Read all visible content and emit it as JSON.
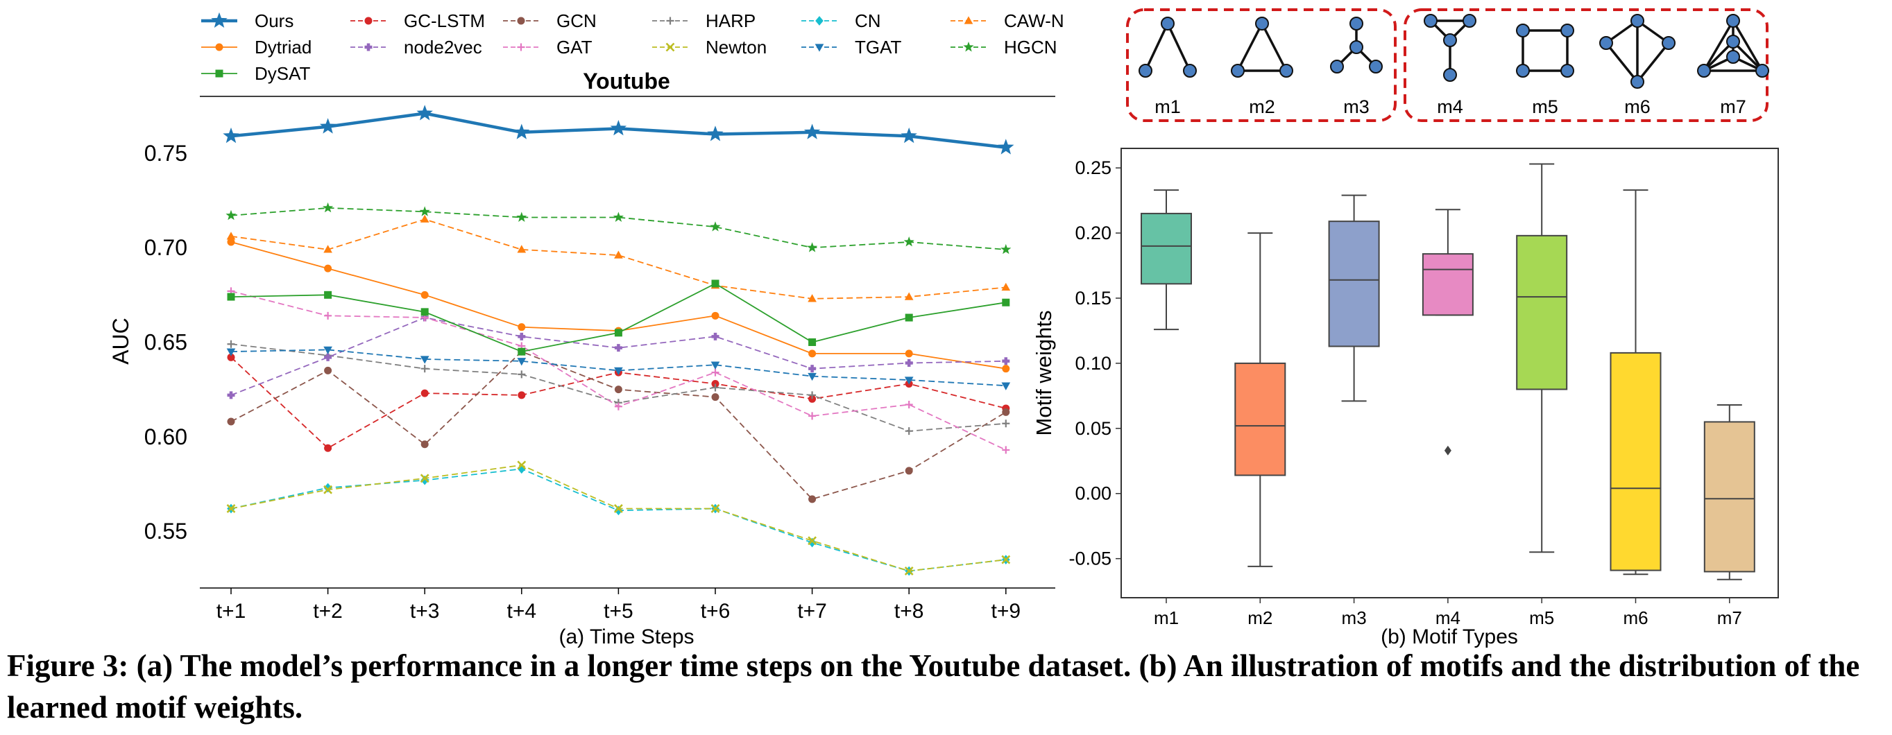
{
  "caption": "Figure 3: (a) The model’s performance in a longer time steps on the Youtube dataset. (b) An illustration of motifs and the distribution of the learned motif weights.",
  "chart_data": [
    {
      "type": "line",
      "title": "Youtube",
      "xlabel": "(a) Time Steps",
      "ylabel": "AUC",
      "categories": [
        "t+1",
        "t+2",
        "t+3",
        "t+4",
        "t+5",
        "t+6",
        "t+7",
        "t+8",
        "t+9"
      ],
      "ylim": [
        0.52,
        0.78
      ],
      "yticks": [
        0.55,
        0.6,
        0.65,
        0.7,
        0.75
      ],
      "ytick_labels": [
        "0.55",
        "0.60",
        "0.65",
        "0.70",
        "0.75"
      ],
      "grid": false,
      "legend_position": "top",
      "series": [
        {
          "name": "Ours",
          "color": "#1f77b4",
          "marker": "star",
          "linestyle": "solid",
          "values": [
            0.759,
            0.764,
            0.771,
            0.761,
            0.763,
            0.76,
            0.761,
            0.759,
            0.753
          ]
        },
        {
          "name": "GC-LSTM",
          "color": "#d62728",
          "marker": "circle",
          "linestyle": "dashed",
          "values": [
            0.642,
            0.594,
            0.623,
            0.622,
            0.634,
            0.628,
            0.62,
            0.628,
            0.615
          ]
        },
        {
          "name": "GCN",
          "color": "#8c564b",
          "marker": "circle",
          "linestyle": "dashed",
          "values": [
            0.608,
            0.635,
            0.596,
            0.645,
            0.625,
            0.621,
            0.567,
            0.582,
            0.613
          ]
        },
        {
          "name": "HARP",
          "color": "#7f7f7f",
          "marker": "plus",
          "linestyle": "dashed",
          "values": [
            0.649,
            0.643,
            0.636,
            0.633,
            0.618,
            0.626,
            0.622,
            0.603,
            0.607
          ]
        },
        {
          "name": "CN",
          "color": "#17becf",
          "marker": "diamond",
          "linestyle": "dashed",
          "values": [
            0.562,
            0.573,
            0.577,
            0.583,
            0.561,
            0.562,
            0.544,
            0.529,
            0.535
          ]
        },
        {
          "name": "CAW-N",
          "color": "#ff7f0e",
          "marker": "triangle-up",
          "linestyle": "dashed",
          "values": [
            0.706,
            0.699,
            0.715,
            0.699,
            0.696,
            0.68,
            0.673,
            0.674,
            0.679
          ]
        },
        {
          "name": "Dytriad",
          "color": "#ff7f0e",
          "marker": "circle",
          "linestyle": "solid",
          "values": [
            0.703,
            0.689,
            0.675,
            0.658,
            0.656,
            0.664,
            0.644,
            0.644,
            0.636
          ]
        },
        {
          "name": "node2vec",
          "color": "#9467bd",
          "marker": "plus-filled",
          "linestyle": "dashed",
          "values": [
            0.622,
            0.642,
            0.663,
            0.653,
            0.647,
            0.653,
            0.636,
            0.639,
            0.64
          ]
        },
        {
          "name": "GAT",
          "color": "#e377c2",
          "marker": "plus",
          "linestyle": "dashed",
          "values": [
            0.677,
            0.664,
            0.663,
            0.648,
            0.616,
            0.634,
            0.611,
            0.617,
            0.593
          ]
        },
        {
          "name": "Newton",
          "color": "#bcbd22",
          "marker": "x",
          "linestyle": "dashed",
          "values": [
            0.562,
            0.572,
            0.578,
            0.585,
            0.562,
            0.562,
            0.545,
            0.529,
            0.535
          ]
        },
        {
          "name": "TGAT",
          "color": "#1f77b4",
          "marker": "triangle-down",
          "linestyle": "dashed",
          "values": [
            0.645,
            0.646,
            0.641,
            0.64,
            0.635,
            0.638,
            0.632,
            0.63,
            0.627
          ]
        },
        {
          "name": "HGCN",
          "color": "#2ca02c",
          "marker": "star",
          "linestyle": "dashed",
          "values": [
            0.717,
            0.721,
            0.719,
            0.716,
            0.716,
            0.711,
            0.7,
            0.703,
            0.699
          ]
        },
        {
          "name": "DySAT",
          "color": "#2ca02c",
          "marker": "square",
          "linestyle": "solid",
          "values": [
            0.674,
            0.675,
            0.666,
            0.645,
            0.655,
            0.681,
            0.65,
            0.663,
            0.671
          ]
        }
      ]
    },
    {
      "type": "box",
      "xlabel": "(b) Motif Types",
      "ylabel": "Motif weights",
      "categories": [
        "m1",
        "m2",
        "m3",
        "m4",
        "m5",
        "m6",
        "m7"
      ],
      "ylim": [
        -0.08,
        0.265
      ],
      "yticks": [
        -0.05,
        0.0,
        0.05,
        0.1,
        0.15,
        0.2,
        0.25
      ],
      "ytick_labels": [
        "-0.05",
        "0.00",
        "0.05",
        "0.10",
        "0.15",
        "0.20",
        "0.25"
      ],
      "grid": false,
      "boxes": [
        {
          "label": "m1",
          "color": "#66c2a5",
          "whisker_low": 0.126,
          "q1": 0.161,
          "median": 0.19,
          "q3": 0.215,
          "whisker_high": 0.233,
          "outliers": []
        },
        {
          "label": "m2",
          "color": "#fc8d62",
          "whisker_low": -0.056,
          "q1": 0.014,
          "median": 0.052,
          "q3": 0.1,
          "whisker_high": 0.2,
          "outliers": []
        },
        {
          "label": "m3",
          "color": "#8da0cb",
          "whisker_low": 0.071,
          "q1": 0.113,
          "median": 0.164,
          "q3": 0.209,
          "whisker_high": 0.229,
          "outliers": []
        },
        {
          "label": "m4",
          "color": "#e78ac3",
          "whisker_low": 0.137,
          "q1": 0.137,
          "median": 0.172,
          "q3": 0.184,
          "whisker_high": 0.218,
          "outliers": [
            0.033
          ]
        },
        {
          "label": "m5",
          "color": "#a6d854",
          "whisker_low": -0.045,
          "q1": 0.08,
          "median": 0.151,
          "q3": 0.198,
          "whisker_high": 0.253,
          "outliers": []
        },
        {
          "label": "m6",
          "color": "#ffd92f",
          "whisker_low": -0.062,
          "q1": -0.059,
          "median": 0.004,
          "q3": 0.108,
          "whisker_high": 0.233,
          "outliers": []
        },
        {
          "label": "m7",
          "color": "#e5c494",
          "whisker_low": -0.066,
          "q1": -0.06,
          "median": -0.004,
          "q3": 0.055,
          "whisker_high": 0.068,
          "outliers": []
        }
      ]
    }
  ],
  "motifs": {
    "group_a": [
      "m1",
      "m2",
      "m3"
    ],
    "group_b": [
      "m4",
      "m5",
      "m6",
      "m7"
    ],
    "node_color": "#4a7fc1",
    "border_color": "#d11a1a"
  }
}
